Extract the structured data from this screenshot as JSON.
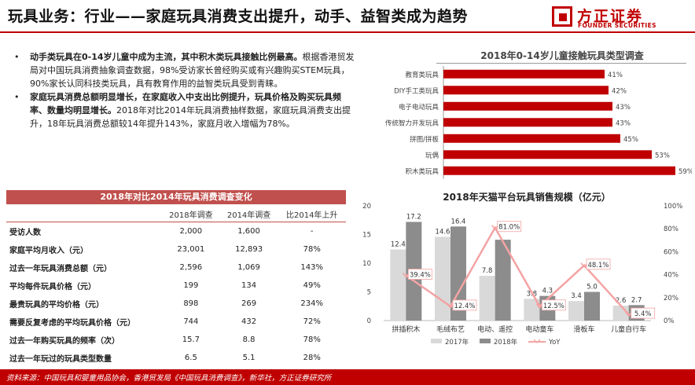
{
  "header": {
    "title": "玩具业务：行业——家庭玩具消费支出提升，动手、益智类成为趋势",
    "logo_cn": "方正证券",
    "logo_en": "FOUNDER SECURITIES"
  },
  "bullets": [
    {
      "bold": "动手类玩具在0-14岁儿童中成为主流，其中积木类玩具接触比例最高。",
      "text": "根据香港贸发局对中国玩具消费抽象调查数据，98%受访家长曾经购买或有兴趣购买STEM玩具，90%家长认同科技类玩具，具有教育作用的益智类玩具受到青睐。"
    },
    {
      "bold": "家庭玩具消费总额明显增长，在家庭收入中支出比例提升，玩具价格及购买玩具频率、数量均明显增长。",
      "text": "2018年对比2014年玩具消费抽样数据，家庭玩具消费支出提升，18年玩具消费总额较14年提升143%，家庭月收入增幅为78%。"
    }
  ],
  "table": {
    "title": "2018年对比2014年玩具消费调查变化",
    "columns": [
      "",
      "2018年调查",
      "2014年调查",
      "比2014年上升"
    ],
    "rows": [
      [
        "受访人数",
        "2,000",
        "1,600",
        "-"
      ],
      [
        "家庭平均月收入（元）",
        "23,001",
        "12,893",
        "78%"
      ],
      [
        "过去一年玩具消费总额（元）",
        "2,596",
        "1,069",
        "143%"
      ],
      [
        "平均每件玩具价格（元）",
        "199",
        "134",
        "49%"
      ],
      [
        "最贵玩具的平均价格（元）",
        "898",
        "269",
        "234%"
      ],
      [
        "需要反复考虑的平均玩具价格（元）",
        "744",
        "432",
        "72%"
      ],
      [
        "过去一年购买玩具的频率（次）",
        "15.7",
        "8.8",
        "78%"
      ],
      [
        "过去一年玩过的玩具类型数量",
        "6.5",
        "5.1",
        "28%"
      ]
    ]
  },
  "chart_data": [
    {
      "type": "bar",
      "orientation": "horizontal",
      "title": "2018年0-14岁儿童接触玩具类型调查",
      "categories": [
        "教育类玩具",
        "DIY手工类玩具",
        "电子电动玩具",
        "传统智力开发玩具",
        "拼图/拼板",
        "玩偶",
        "积木类玩具"
      ],
      "values": [
        41,
        42,
        43,
        43,
        45,
        53,
        59
      ],
      "value_labels": [
        "41%",
        "42%",
        "43%",
        "43%",
        "45%",
        "53%",
        "59%"
      ],
      "color": "#c00000",
      "xlim": [
        0,
        60
      ]
    },
    {
      "type": "bar",
      "title": "2018年天猫平台玩具销售规模（亿元）",
      "categories": [
        "拼插积木",
        "毛绒布艺",
        "电动、遥控",
        "电动童车",
        "滑板车",
        "儿童自行车"
      ],
      "series": [
        {
          "name": "2017年",
          "values": [
            12.4,
            14.6,
            7.8,
            3.8,
            3.4,
            2.6
          ],
          "labels": [
            "12.4",
            "14.6",
            "7.8",
            "3.8",
            "3.4",
            "2.6"
          ],
          "color": "#d9d9d9",
          "axis": "left"
        },
        {
          "name": "2018年",
          "values": [
            17.2,
            16.4,
            14.1,
            4.3,
            5.0,
            2.7
          ],
          "labels": [
            "17.2",
            "16.4",
            "",
            "4.3",
            "5.0",
            "2.7"
          ],
          "color": "#8c8c8c",
          "axis": "left"
        },
        {
          "name": "YoY",
          "type": "line",
          "values": [
            39.4,
            12.4,
            81.0,
            12.5,
            48.1,
            5.4
          ],
          "labels": [
            "39.4%",
            "12.4%",
            "81.0%",
            "12.5%",
            "48.1%",
            "5.4%"
          ],
          "color": "#f4a3a3",
          "axis": "right"
        }
      ],
      "ylim": [
        0,
        20
      ],
      "yticks": [
        "0",
        "5",
        "10",
        "15",
        "20"
      ],
      "y2lim": [
        0,
        100
      ],
      "y2ticks": [
        "0%",
        "20%",
        "40%",
        "60%",
        "80%",
        "100%"
      ],
      "legend": "bottom"
    }
  ],
  "footer": {
    "source": "资料来源：中国玩具和婴童用品协会，香港贸发局《中国玩具消费调查》，新华社，方正证券研究所"
  }
}
